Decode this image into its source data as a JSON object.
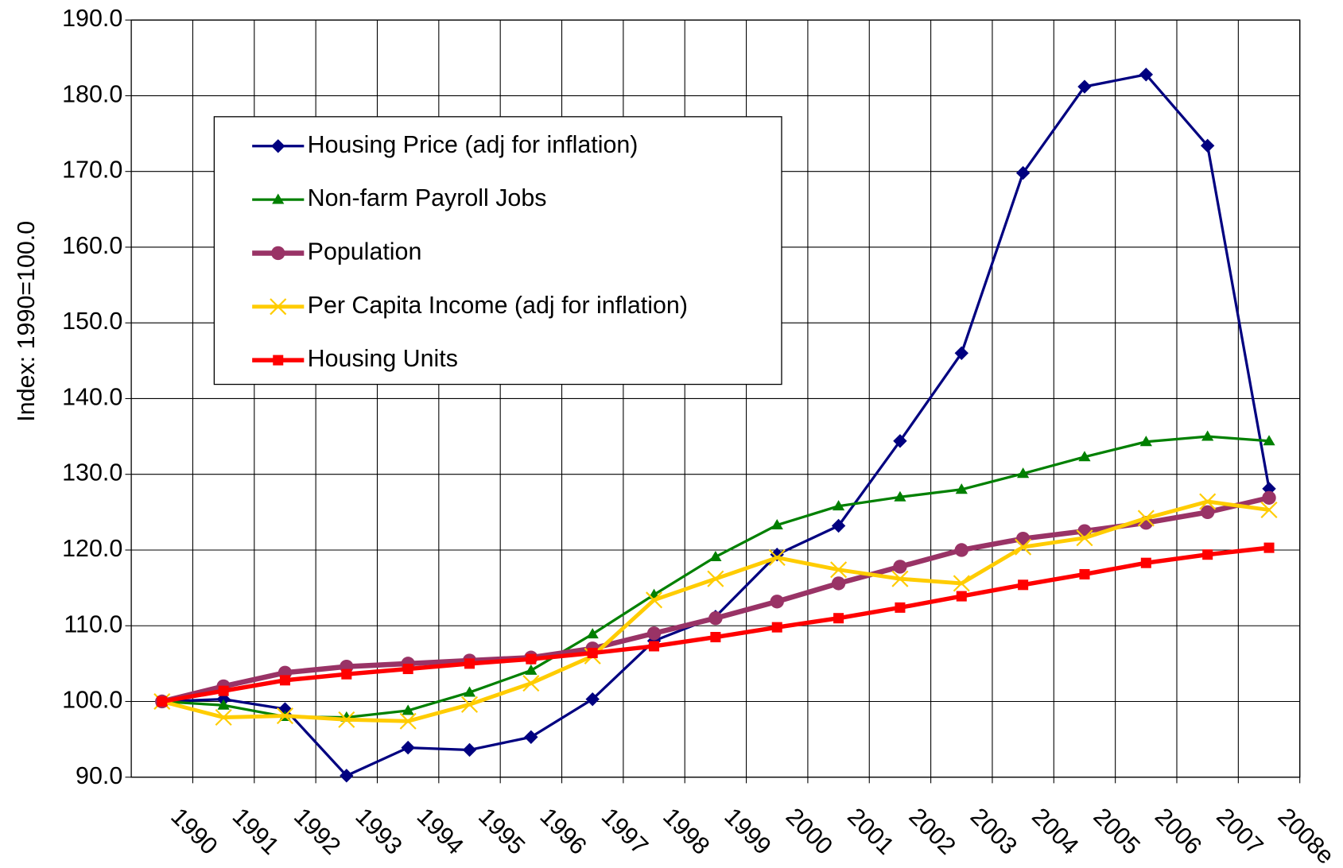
{
  "chart_data": {
    "type": "line",
    "y_label": "Index: 1990=100.0",
    "categories": [
      "1990",
      "1991",
      "1992",
      "1993",
      "1994",
      "1995",
      "1996",
      "1997",
      "1998",
      "1999",
      "2000",
      "2001",
      "2002",
      "2003",
      "2004",
      "2005",
      "2006",
      "2007",
      "2008e"
    ],
    "series": [
      {
        "name": "Housing Price (adj for inflation)",
        "color": "#000080",
        "marker": "diamond",
        "values": [
          100,
          100.3,
          99,
          90.2,
          93.9,
          93.6,
          95.3,
          100.3,
          108,
          111.2,
          119.4,
          123.2,
          134.4,
          146,
          169.8,
          181.2,
          182.8,
          173.4,
          128.1
        ]
      },
      {
        "name": "Non-farm Payroll Jobs",
        "color": "#008000",
        "marker": "triangle",
        "values": [
          100,
          99.5,
          98,
          97.9,
          98.8,
          101.2,
          104.1,
          108.9,
          114.1,
          119.1,
          123.3,
          125.8,
          127,
          128,
          130.1,
          132.3,
          134.3,
          135,
          134.4
        ]
      },
      {
        "name": "Population",
        "color": "#993366",
        "marker": "circle",
        "values": [
          100,
          102,
          103.8,
          104.6,
          105,
          105.4,
          105.8,
          107,
          109,
          111,
          113.2,
          115.6,
          117.8,
          120,
          121.5,
          122.5,
          123.6,
          125,
          126.9
        ]
      },
      {
        "name": "Per Capita Income (adj for inflation)",
        "color": "#FFCC00",
        "marker": "x",
        "values": [
          100,
          97.9,
          98.1,
          97.6,
          97.4,
          99.6,
          102.4,
          106,
          113.4,
          116.2,
          119,
          117.4,
          116.2,
          115.6,
          120.4,
          121.6,
          124.2,
          126.4,
          125.3
        ]
      },
      {
        "name": "Housing Units",
        "color": "#FF0000",
        "marker": "square",
        "values": [
          100,
          101.4,
          102.8,
          103.6,
          104.3,
          105,
          105.6,
          106.4,
          107.3,
          108.5,
          109.8,
          111,
          112.4,
          113.9,
          115.4,
          116.8,
          118.3,
          119.4,
          120.3
        ]
      }
    ],
    "ylim": [
      90,
      190
    ],
    "yticks": [
      {
        "value": 90,
        "label": "90.0"
      },
      {
        "value": 100,
        "label": "100.0"
      },
      {
        "value": 110,
        "label": "110.0"
      },
      {
        "value": 120,
        "label": "120.0"
      },
      {
        "value": 130,
        "label": "130.0"
      },
      {
        "value": 140,
        "label": "140.0"
      },
      {
        "value": 150,
        "label": "150.0"
      },
      {
        "value": 160,
        "label": "160.0"
      },
      {
        "value": 170,
        "label": "170.0"
      },
      {
        "value": 180,
        "label": "180.0"
      },
      {
        "value": 190,
        "label": "190.0"
      }
    ],
    "grid": true,
    "legend": "upper left"
  }
}
